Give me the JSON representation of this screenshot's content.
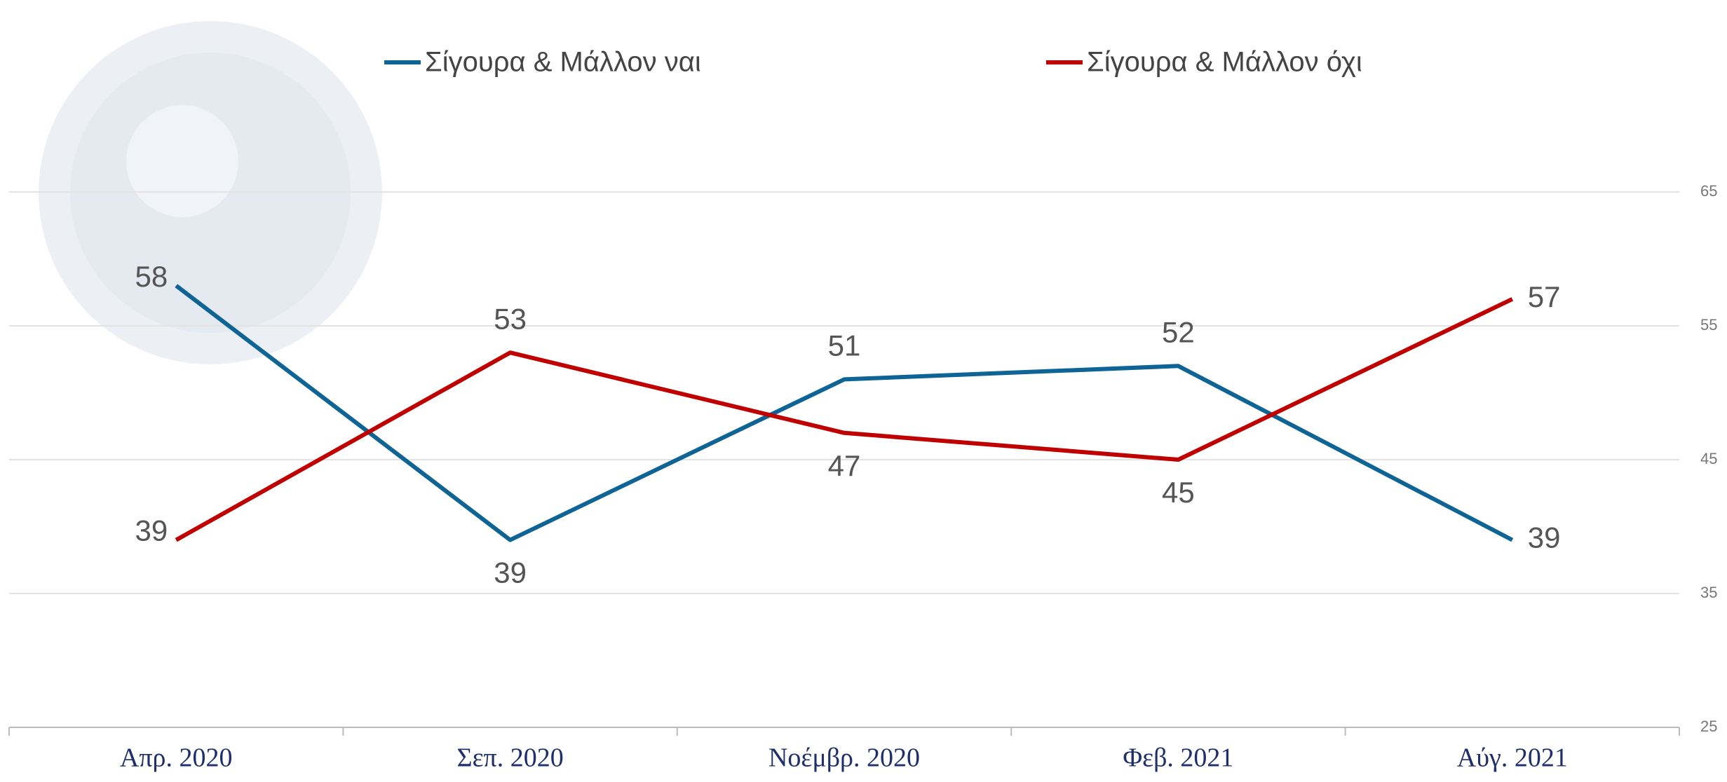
{
  "chart_data": {
    "type": "line",
    "categories": [
      "Απρ. 2020",
      "Σεπ. 2020",
      "Νοέμβρ. 2020",
      "Φεβ. 2021",
      "Αύγ. 2021"
    ],
    "series": [
      {
        "name": "Σίγουρα & Μάλλον ναι",
        "color": "#0f6496",
        "values": [
          58,
          39,
          51,
          52,
          39
        ]
      },
      {
        "name": "Σίγουρα & Μάλλον όχι",
        "color": "#c00000",
        "values": [
          39,
          53,
          47,
          45,
          57
        ]
      }
    ],
    "ylim": [
      25,
      75
    ],
    "yticks": [
      25,
      35,
      45,
      55,
      65
    ],
    "grid": true,
    "y_axis_side": "right"
  }
}
